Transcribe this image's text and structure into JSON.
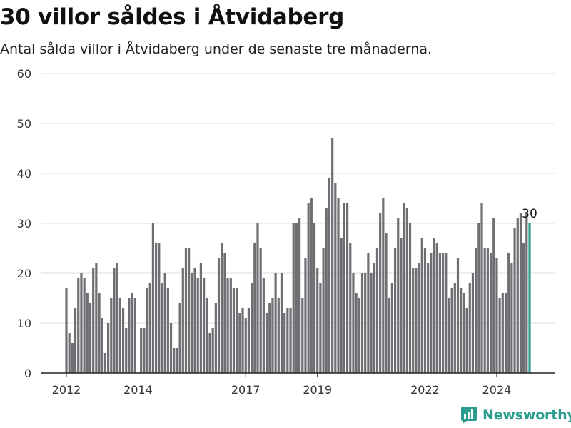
{
  "header": {
    "title": "30 villor såldes i Åtvidaberg",
    "subtitle": "Antal sålda villor i Åtvidaberg under de senaste tre månaderna."
  },
  "brand": {
    "name": "Newsworthy",
    "icon": "bar-chart-logo-icon",
    "color": "#2a9d8f"
  },
  "colors": {
    "bar": "#6e6e73",
    "highlight": "#2a9d8f",
    "grid": "#dddddd",
    "axis": "#222222"
  },
  "chart_data": {
    "type": "bar",
    "title": "30 villor såldes i Åtvidaberg",
    "subtitle": "Antal sålda villor i Åtvidaberg under de senaste tre månaderna.",
    "xlabel": "",
    "ylabel": "",
    "ylim": [
      0,
      60
    ],
    "yticks": [
      0,
      10,
      20,
      30,
      40,
      50,
      60
    ],
    "xticks": [
      "2012",
      "2014",
      "2017",
      "2019",
      "2022",
      "2024"
    ],
    "x_start": "2012-01",
    "x_end": "2024-12",
    "grid": true,
    "highlight_index": 155,
    "annotation": {
      "text": "30",
      "index": 155
    },
    "series": [
      {
        "values": [
          17,
          8,
          6,
          13,
          19,
          20,
          19,
          16,
          14,
          21,
          22,
          16,
          11,
          4,
          10,
          15,
          21,
          22,
          15,
          13,
          9,
          15,
          16,
          15,
          0,
          9,
          9,
          17,
          18,
          30,
          26,
          26,
          18,
          20,
          17,
          10,
          5,
          5,
          14,
          21,
          25,
          25,
          20,
          21,
          19,
          22,
          19,
          15,
          8,
          9,
          14,
          23,
          26,
          24,
          19,
          19,
          17,
          17,
          12,
          13,
          11,
          13,
          18,
          26,
          30,
          25,
          19,
          12,
          14,
          15,
          20,
          15,
          20,
          12,
          13,
          13,
          30,
          30,
          31,
          15,
          23,
          34,
          35,
          30,
          21,
          18,
          25,
          33,
          39,
          47,
          38,
          35,
          27,
          34,
          34,
          26,
          20,
          16,
          15,
          20,
          20,
          24,
          20,
          22,
          25,
          32,
          35,
          28,
          15,
          18,
          25,
          31,
          27,
          34,
          33,
          30,
          21,
          21,
          22,
          27,
          25,
          22,
          24,
          27,
          26,
          24,
          24,
          24,
          15,
          17,
          18,
          23,
          17,
          16,
          13,
          18,
          20,
          25,
          30,
          34,
          25,
          25,
          24,
          31,
          23,
          15,
          16,
          16,
          24,
          22,
          29,
          31,
          32,
          26,
          32,
          30
        ]
      }
    ]
  }
}
